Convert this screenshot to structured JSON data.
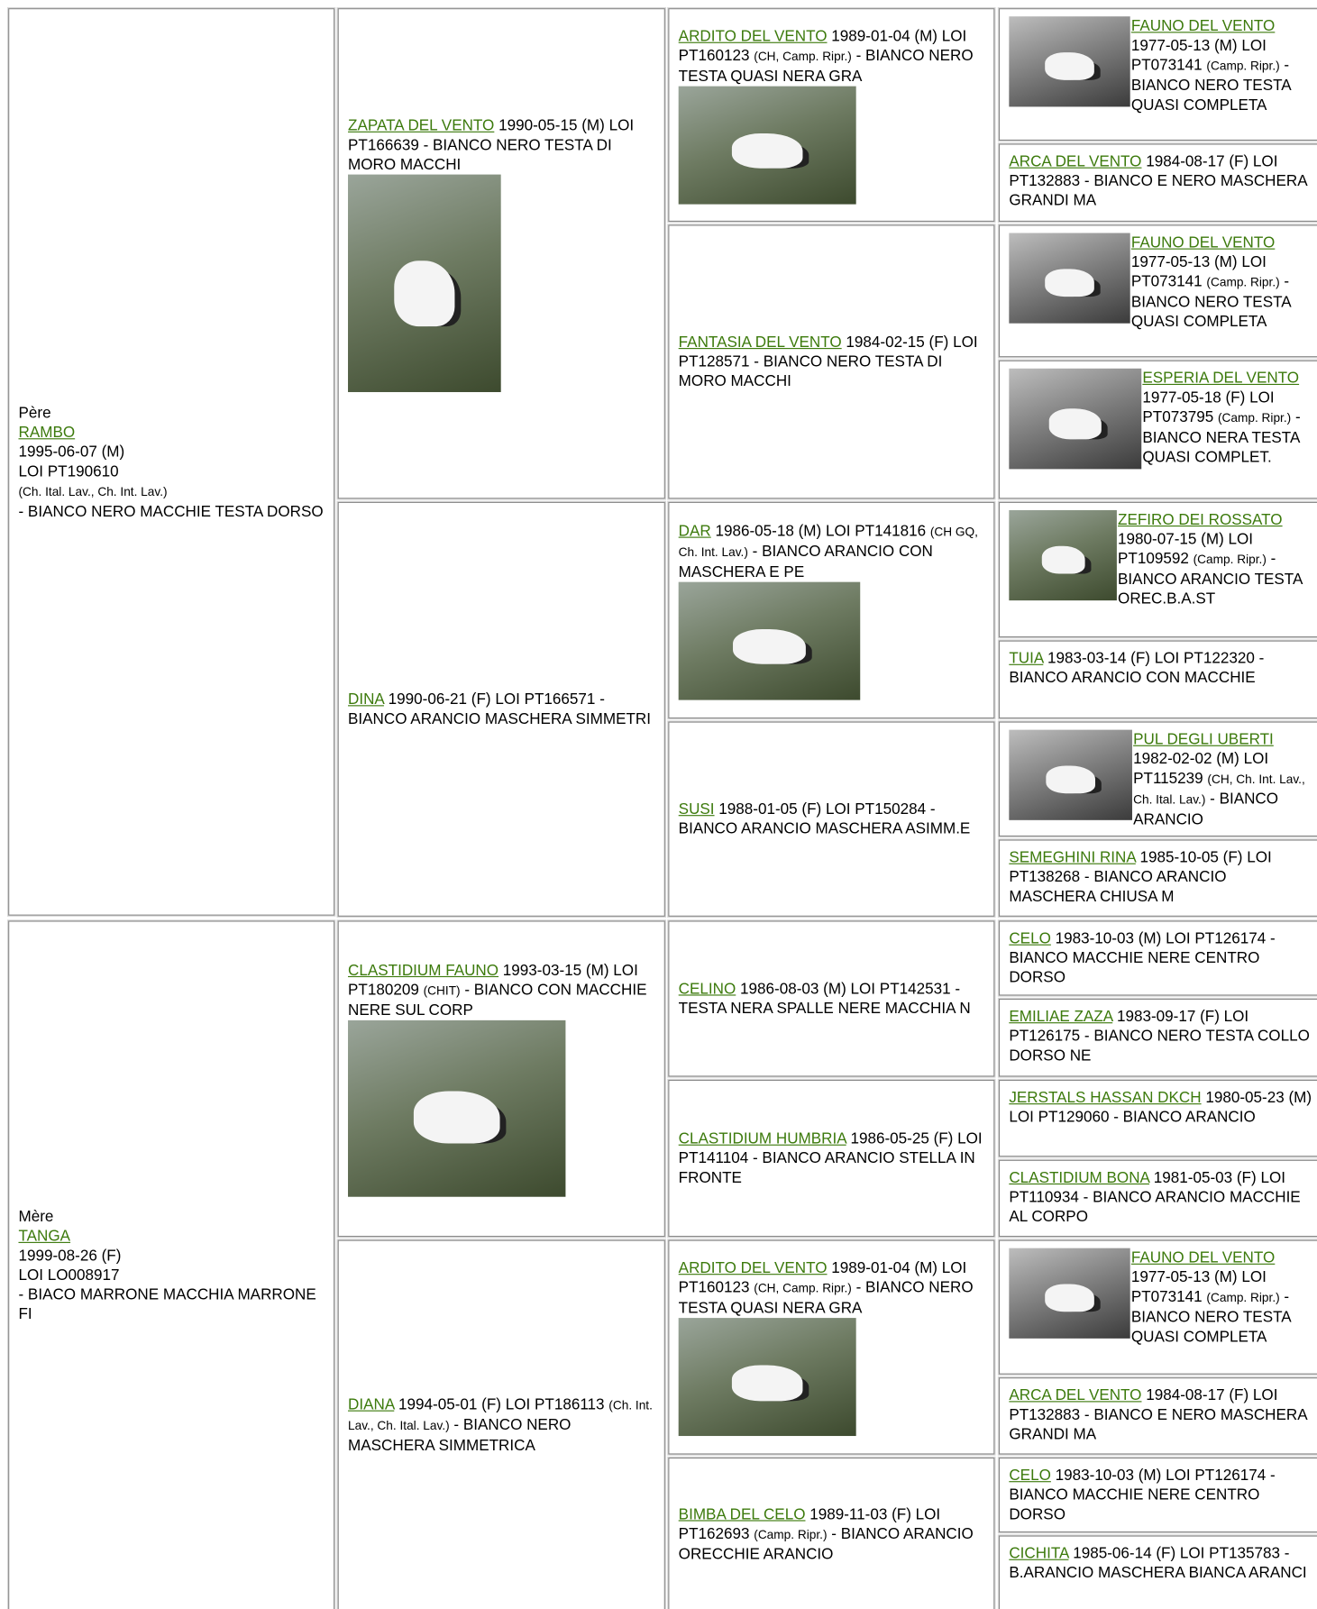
{
  "cells": [
    {
      "label": "Père",
      "name": "RAMBO",
      "date": "1995-06-07 (M)",
      "loi": "LOI PT190610",
      "titles": "(Ch. Ital. Lav., Ch. Int. Lav.)",
      "desc": "- BIANCO NERO MACCHIE TESTA DORSO"
    },
    {
      "name": "ZAPATA DEL VENTO",
      "date": "1990-05-15 (M)",
      "loi": "LOI PT166639",
      "desc": "- BIANCO NERO TESTA DI MORO MACCHI"
    },
    {
      "name": "ARDITO DEL VENTO",
      "date": "1989-01-04 (M)",
      "loi": "LOI PT160123",
      "titles": "(CH, Camp. Ripr.)",
      "desc": "- BIANCO NERO TESTA QUASI NERA GRA"
    },
    {
      "name": "FAUNO DEL VENTO",
      "date": "1977-05-13 (M)",
      "loi": "LOI PT073141",
      "titles": "(Camp. Ripr.)",
      "desc": "- BIANCO NERO TESTA QUASI COMPLETA"
    },
    {
      "name": "ARCA DEL VENTO",
      "date": "1984-08-17 (F)",
      "loi": "LOI PT132883",
      "desc": "- BIANCO E NERO MASCHERA GRANDI MA"
    },
    {
      "name": "FANTASIA DEL VENTO",
      "date": "1984-02-15 (F)",
      "loi": "LOI PT128571",
      "desc": "- BIANCO NERO TESTA DI MORO MACCHI"
    },
    {
      "name": "FAUNO DEL VENTO",
      "date": "1977-05-13 (M)",
      "loi": "LOI PT073141",
      "titles": "(Camp. Ripr.)",
      "desc": "- BIANCO NERO TESTA QUASI COMPLETA"
    },
    {
      "name": "ESPERIA DEL VENTO",
      "date": "1977-05-18 (F)",
      "loi": "LOI PT073795",
      "titles": "(Camp. Ripr.)",
      "desc": "- BIANCO NERA TESTA QUASI COMPLET."
    },
    {
      "name": "DINA",
      "date": "1990-06-21 (F)",
      "loi": "LOI PT166571",
      "desc": "- BIANCO ARANCIO MASCHERA SIMMETRI"
    },
    {
      "name": "DAR",
      "date": "1986-05-18 (M)",
      "loi": "LOI PT141816",
      "titles": "(CH GQ, Ch. Int. Lav.)",
      "desc": "- BIANCO ARANCIO CON MASCHERA E PE"
    },
    {
      "name": "ZEFIRO DEI ROSSATO",
      "date": "1980-07-15 (M)",
      "loi": "LOI PT109592",
      "titles": "(Camp. Ripr.)",
      "desc": "- BIANCO ARANCIO TESTA OREC.B.A.ST"
    },
    {
      "name": "TUIA",
      "date": "1983-03-14 (F)",
      "loi": "LOI PT122320",
      "desc": "- BIANCO ARANCIO CON MACCHIE"
    },
    {
      "name": "SUSI",
      "date": "1988-01-05 (F)",
      "loi": "LOI PT150284",
      "desc": "- BIANCO ARANCIO MASCHERA ASIMM.E"
    },
    {
      "name": "PUL DEGLI UBERTI",
      "date": "1982-02-02 (M)",
      "loi": "LOI PT115239",
      "titles": "(CH, Ch. Int. Lav., Ch. Ital. Lav.)",
      "desc": "- BIANCO ARANCIO"
    },
    {
      "name": "SEMEGHINI RINA",
      "date": "1985-10-05 (F)",
      "loi": "LOI PT138268",
      "desc": "- BIANCO ARANCIO MASCHERA CHIUSA M"
    },
    {
      "label": "Mère",
      "name": "TANGA",
      "date": "1999-08-26 (F)",
      "loi": "LOI LO008917",
      "desc": "- BIACO MARRONE MACCHIA MARRONE FI"
    },
    {
      "name": "CLASTIDIUM FAUNO",
      "date": "1993-03-15 (M)",
      "loi": "LOI PT180209",
      "titles": "(CHIT)",
      "desc": "- BIANCO CON MACCHIE NERE SUL CORP"
    },
    {
      "name": "CELINO",
      "date": "1986-08-03 (M)",
      "loi": "LOI PT142531",
      "desc": "- TESTA NERA SPALLE NERE MACCHIA N"
    },
    {
      "name": "CELO",
      "date": "1983-10-03 (M)",
      "loi": "LOI PT126174",
      "desc": "- BIANCO MACCHIE NERE CENTRO DORSO"
    },
    {
      "name": "EMILIAE ZAZA",
      "date": "1983-09-17 (F)",
      "loi": "LOI PT126175",
      "desc": "- BIANCO NERO TESTA COLLO DORSO NE"
    },
    {
      "name": "CLASTIDIUM HUMBRIA",
      "date": "1986-05-25 (F)",
      "loi": "LOI PT141104",
      "desc": "- BIANCO ARANCIO STELLA IN FRONTE"
    },
    {
      "name": "JERSTALS HASSAN DKCH",
      "date": "1980-05-23 (M)",
      "loi": "LOI PT129060",
      "desc": "- BIANCO ARANCIO"
    },
    {
      "name": "CLASTIDIUM BONA",
      "date": "1981-05-03 (F)",
      "loi": "LOI PT110934",
      "desc": "- BIANCO ARANCIO MACCHIE AL CORPO"
    },
    {
      "name": "DIANA",
      "date": "1994-05-01 (F)",
      "loi": "LOI PT186113",
      "titles": "(Ch. Int. Lav., Ch. Ital. Lav.)",
      "desc": "- BIANCO NERO MASCHERA SIMMETRICA"
    },
    {
      "name": "ARDITO DEL VENTO",
      "date": "1989-01-04 (M)",
      "loi": "LOI PT160123",
      "titles": "(CH, Camp. Ripr.)",
      "desc": "- BIANCO NERO TESTA QUASI NERA GRA"
    },
    {
      "name": "FAUNO DEL VENTO",
      "date": "1977-05-13 (M)",
      "loi": "LOI PT073141",
      "titles": "(Camp. Ripr.)",
      "desc": "- BIANCO NERO TESTA QUASI COMPLETA"
    },
    {
      "name": "ARCA DEL VENTO",
      "date": "1984-08-17 (F)",
      "loi": "LOI PT132883",
      "desc": "- BIANCO E NERO MASCHERA GRANDI MA"
    },
    {
      "name": "BIMBA DEL CELO",
      "date": "1989-11-03 (F)",
      "loi": "LOI PT162693",
      "titles": "(Camp. Ripr.)",
      "desc": "- BIANCO ARANCIO ORECCHIE ARANCIO"
    },
    {
      "name": "CELO",
      "date": "1983-10-03 (M)",
      "loi": "LOI PT126174",
      "desc": "- BIANCO MACCHIE NERE CENTRO DORSO"
    },
    {
      "name": "CICHITA",
      "date": "1985-06-14 (F)",
      "loi": "LOI PT135783",
      "desc": "- B.ARANCIO MASCHERA BIANCA ARANCI"
    }
  ]
}
